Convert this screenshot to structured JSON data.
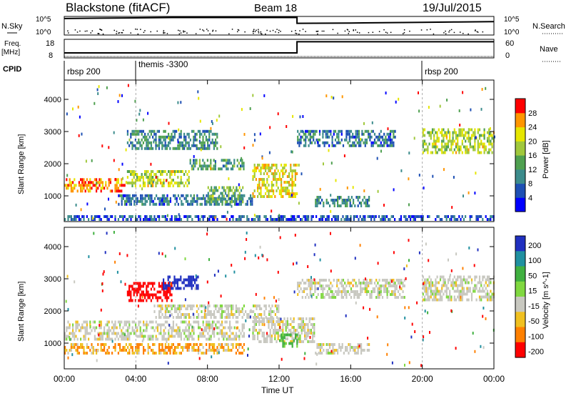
{
  "header": {
    "station": "Blackstone (fitACF)",
    "beam": "Beam 18",
    "date": "19/Jul/2015"
  },
  "top_panels": {
    "nsky_label": "N.Sky",
    "nsky_ticks": [
      "10^5",
      "10^0"
    ],
    "nsearch_label": "N.Search",
    "nsearch_ticks": [
      "10^5",
      "10^0"
    ],
    "freq_label": "Freq.",
    "freq_unit": "[MHz]",
    "freq_ticks": [
      "18",
      "8"
    ],
    "nave_label": "Nave",
    "nave_ticks": [
      "60",
      "0"
    ],
    "cpid_label": "CPID",
    "cpid_segments": [
      {
        "label": "rbsp 200",
        "start": 0
      },
      {
        "label": "themis -3300",
        "start": 4
      },
      {
        "label": "rbsp 200",
        "start": 20
      }
    ],
    "freq_series": [
      {
        "t": 0,
        "v": 10.5
      },
      {
        "t": 13,
        "v": 10.5
      },
      {
        "t": 13,
        "v": 17
      },
      {
        "t": 24,
        "v": 17
      }
    ],
    "nsky_series": [
      {
        "t": 0,
        "v": 4.6
      },
      {
        "t": 2,
        "v": 4.7
      },
      {
        "t": 4,
        "v": 4.8
      },
      {
        "t": 6,
        "v": 4.9
      },
      {
        "t": 8,
        "v": 4.9
      },
      {
        "t": 10,
        "v": 4.9
      },
      {
        "t": 12,
        "v": 4.9
      },
      {
        "t": 13,
        "v": 4.9
      },
      {
        "t": 13,
        "v": 3.2
      },
      {
        "t": 16,
        "v": 3.3
      },
      {
        "t": 20,
        "v": 3.5
      },
      {
        "t": 22,
        "v": 3.6
      },
      {
        "t": 24,
        "v": 3.7
      }
    ]
  },
  "chart_data": [
    {
      "type": "heatmap",
      "name": "power",
      "ylabel": "Slant Range [km]",
      "yticks": [
        "1000",
        "2000",
        "3000",
        "4000"
      ],
      "ylim": [
        200,
        4600
      ],
      "xlim": [
        0,
        24
      ],
      "colorbar_label": "Power [dB]",
      "colorbar_ticks": [
        "4",
        "8",
        "12",
        "16",
        "20",
        "24",
        "28"
      ],
      "colorbar_range": [
        0,
        30
      ],
      "colorbar_colors": [
        "#0000ff",
        "#1e50b4",
        "#3c8c8c",
        "#4fa050",
        "#a0c83c",
        "#e6e600",
        "#ff9600",
        "#ff0000"
      ],
      "regions": [
        {
          "t0": 0.0,
          "t1": 3.5,
          "r0": 1150,
          "r1": 1550,
          "p": 26
        },
        {
          "t0": 3.5,
          "t1": 7.0,
          "r0": 1300,
          "r1": 1800,
          "p": 18
        },
        {
          "t0": 7.0,
          "t1": 10.0,
          "r0": 1800,
          "r1": 2150,
          "p": 12
        },
        {
          "t0": 3.0,
          "t1": 10.5,
          "r0": 750,
          "r1": 1050,
          "p": 8
        },
        {
          "t0": 8.0,
          "t1": 10.0,
          "r0": 800,
          "r1": 1300,
          "p": 14
        },
        {
          "t0": 3.5,
          "t1": 8.5,
          "r0": 2500,
          "r1": 3050,
          "p": 10
        },
        {
          "t0": 10.5,
          "t1": 13.0,
          "r0": 1000,
          "r1": 2000,
          "p": 20
        },
        {
          "t0": 13.0,
          "t1": 18.5,
          "r0": 2600,
          "r1": 3050,
          "p": 8
        },
        {
          "t0": 14.0,
          "t1": 17.0,
          "r0": 700,
          "r1": 1000,
          "p": 10
        },
        {
          "t0": 20.0,
          "t1": 24.0,
          "r0": 2300,
          "r1": 3100,
          "p": 18
        },
        {
          "t0": 0.0,
          "t1": 24.0,
          "r0": 250,
          "r1": 400,
          "p": 6
        }
      ]
    },
    {
      "type": "heatmap",
      "name": "velocity",
      "ylabel": "Slant Range [km]",
      "yticks": [
        "1000",
        "2000",
        "3000",
        "4000"
      ],
      "ylim": [
        200,
        4600
      ],
      "xlim": [
        0,
        24
      ],
      "xticks": [
        "00:00",
        "04:00",
        "08:00",
        "12:00",
        "16:00",
        "20:00",
        "00:00"
      ],
      "xlabel": "Time UT",
      "colorbar_label": "Velocity [m s^-1]",
      "colorbar_ticks": [
        "200",
        "100",
        "50",
        "15",
        "-15",
        "-50",
        "-100",
        "-200"
      ],
      "colorbar_colors": [
        "#2030c0",
        "#2090a0",
        "#40b040",
        "#80d840",
        "#c8c8c0",
        "#f0c020",
        "#ff8000",
        "#ff0000"
      ],
      "regions": [
        {
          "t0": 0.0,
          "t1": 10.0,
          "r0": 1100,
          "r1": 1700,
          "v": 0
        },
        {
          "t0": 5.0,
          "t1": 12.0,
          "r0": 1800,
          "r1": 2200,
          "v": 0
        },
        {
          "t0": 13.0,
          "t1": 19.0,
          "r0": 2400,
          "r1": 3000,
          "v": 0
        },
        {
          "t0": 20.0,
          "t1": 24.0,
          "r0": 2300,
          "r1": 3100,
          "v": 0
        },
        {
          "t0": 3.5,
          "t1": 6.0,
          "r0": 2300,
          "r1": 2900,
          "v": -180
        },
        {
          "t0": 5.5,
          "t1": 7.5,
          "r0": 2700,
          "r1": 3100,
          "v": 200
        },
        {
          "t0": 0.0,
          "t1": 10.0,
          "r0": 700,
          "r1": 1000,
          "v": -30
        },
        {
          "t0": 10.5,
          "t1": 14.0,
          "r0": 1000,
          "r1": 1800,
          "v": 0
        },
        {
          "t0": 12.0,
          "t1": 13.0,
          "r0": 900,
          "r1": 1300,
          "v": 40
        },
        {
          "t0": 14.0,
          "t1": 17.0,
          "r0": 700,
          "r1": 1000,
          "v": 0
        }
      ]
    }
  ]
}
